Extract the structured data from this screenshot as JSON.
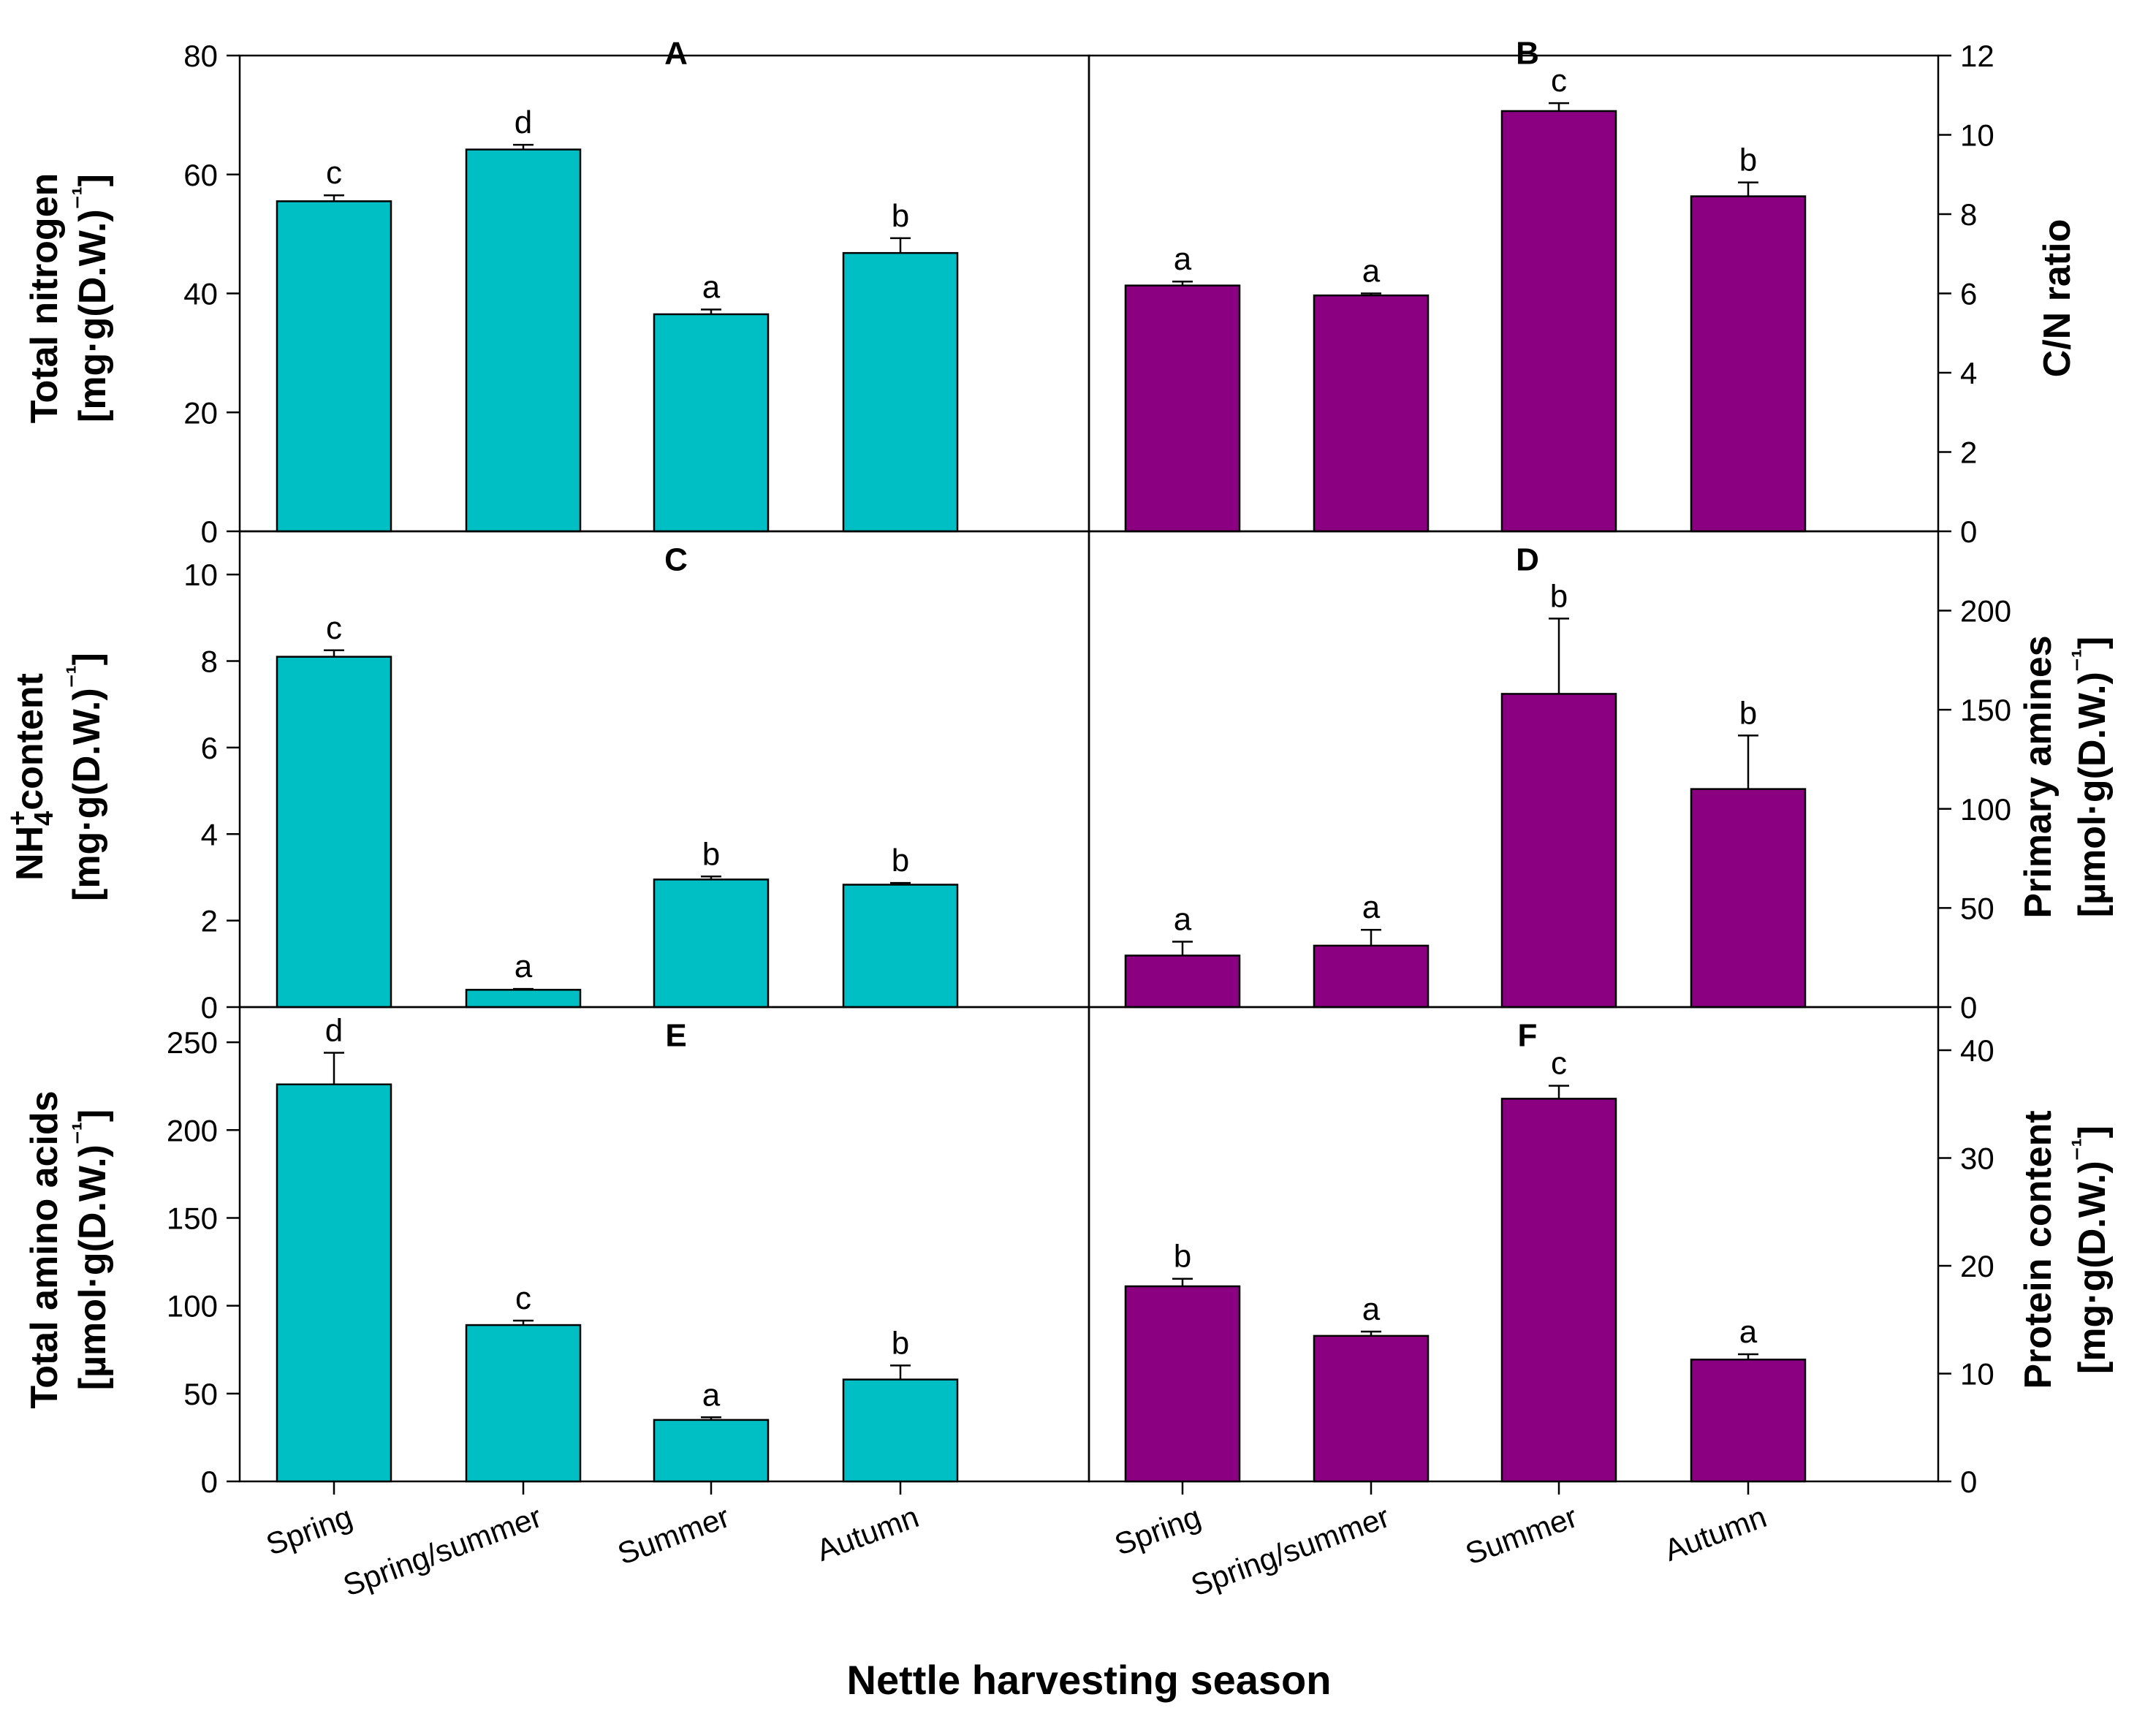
{
  "figure": {
    "xlabel": "Nettle harvesting season",
    "colors": {
      "teal": "#00bfc4",
      "purple": "#8b0081",
      "axis": "#000000"
    }
  },
  "chart_data": [
    {
      "id": "A",
      "type": "bar",
      "title": "A",
      "categories": [
        "Spring",
        "Spring/summer",
        "Summer",
        "Autumn"
      ],
      "values": [
        55.5,
        64.2,
        36.5,
        46.8
      ],
      "errors": [
        1.0,
        0.8,
        0.8,
        2.5
      ],
      "letters": [
        "c",
        "d",
        "a",
        "b"
      ],
      "ylabel_lines": [
        "Total nitrogen",
        "[mg·g(D.W.)",
        "⁻¹",
        "]"
      ],
      "ylim": [
        0,
        80
      ],
      "yticks": [
        0,
        20,
        40,
        60,
        80
      ],
      "axis_side": "left",
      "color": "#00bfc4"
    },
    {
      "id": "B",
      "type": "bar",
      "title": "B",
      "categories": [
        "Spring",
        "Spring/summer",
        "Summer",
        "Autumn"
      ],
      "values": [
        6.2,
        5.95,
        10.6,
        8.45
      ],
      "errors": [
        0.1,
        0.05,
        0.2,
        0.35
      ],
      "letters": [
        "a",
        "a",
        "c",
        "b"
      ],
      "ylabel_lines": [
        "C/N ratio"
      ],
      "ylim": [
        0,
        12
      ],
      "yticks": [
        0,
        2,
        4,
        6,
        8,
        10,
        12
      ],
      "axis_side": "right",
      "color": "#8b0081"
    },
    {
      "id": "C",
      "type": "bar",
      "title": "C",
      "categories": [
        "Spring",
        "Spring/summer",
        "Summer",
        "Autumn"
      ],
      "values": [
        8.1,
        0.4,
        2.95,
        2.83
      ],
      "errors": [
        0.15,
        0.02,
        0.07,
        0.04
      ],
      "letters": [
        "c",
        "a",
        "b",
        "b"
      ],
      "ylabel_lines": [
        "NH",
        "4",
        "+",
        "content",
        "[mg·g(D.W.)",
        "⁻¹",
        "]"
      ],
      "ylim": [
        0,
        11
      ],
      "yticks": [
        0,
        2,
        4,
        6,
        8,
        10
      ],
      "axis_side": "left",
      "color": "#00bfc4"
    },
    {
      "id": "D",
      "type": "bar",
      "title": "D",
      "categories": [
        "Spring",
        "Spring/summer",
        "Summer",
        "Autumn"
      ],
      "values": [
        26,
        31,
        158,
        110
      ],
      "errors": [
        7,
        8,
        38,
        27
      ],
      "letters": [
        "a",
        "a",
        "b",
        "b"
      ],
      "ylabel_lines": [
        "Primary amines",
        "[µmol·g(D.W.)",
        "⁻¹",
        "]"
      ],
      "ylim": [
        0,
        240
      ],
      "yticks": [
        0,
        50,
        100,
        150,
        200
      ],
      "axis_side": "right",
      "color": "#8b0081"
    },
    {
      "id": "E",
      "type": "bar",
      "title": "E",
      "categories": [
        "Spring",
        "Spring/summer",
        "Summer",
        "Autumn"
      ],
      "values": [
        226,
        89,
        35,
        58
      ],
      "errors": [
        18,
        2.5,
        1.5,
        8
      ],
      "letters": [
        "d",
        "c",
        "a",
        "b"
      ],
      "ylabel_lines": [
        "Total amino acids",
        "[µmol·g(D.W.)",
        "⁻¹",
        "]"
      ],
      "ylim": [
        0,
        270
      ],
      "yticks": [
        0,
        50,
        100,
        150,
        200,
        250
      ],
      "axis_side": "left",
      "color": "#00bfc4"
    },
    {
      "id": "F",
      "type": "bar",
      "title": "F",
      "categories": [
        "Spring",
        "Spring/summer",
        "Summer",
        "Autumn"
      ],
      "values": [
        18.1,
        13.5,
        35.5,
        11.3
      ],
      "errors": [
        0.7,
        0.4,
        1.2,
        0.5
      ],
      "letters": [
        "b",
        "a",
        "c",
        "a"
      ],
      "ylabel_lines": [
        "Protein content",
        "[mg·g(D.W.)",
        "⁻¹",
        "]"
      ],
      "ylim": [
        0,
        44
      ],
      "yticks": [
        0,
        10,
        20,
        30,
        40
      ],
      "axis_side": "right",
      "color": "#8b0081"
    }
  ]
}
